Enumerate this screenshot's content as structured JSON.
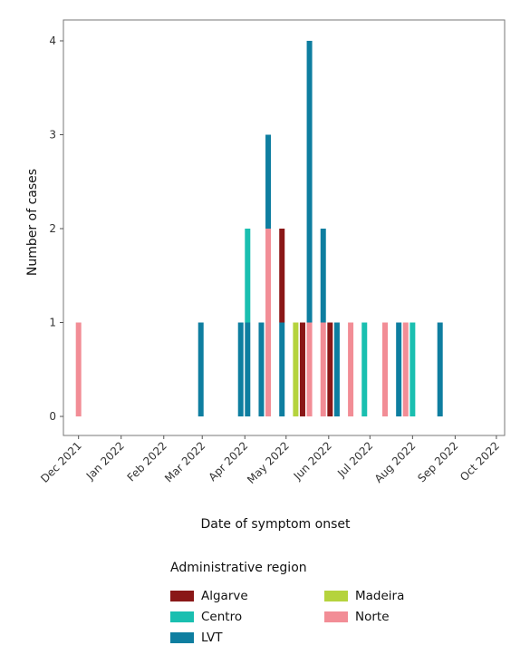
{
  "chart_data": {
    "type": "bar",
    "subtype": "stacked-dot-bar",
    "xlabel": "Date of symptom onset",
    "ylabel": "Number of cases",
    "x_ticks": [
      "Dec 2021",
      "Jan 2022",
      "Feb 2022",
      "Mar 2022",
      "Apr 2022",
      "May 2022",
      "Jun 2022",
      "Jul 2022",
      "Aug 2022",
      "Sep 2022",
      "Oct 2022"
    ],
    "y_ticks": [
      "0",
      "1",
      "2",
      "3",
      "4"
    ],
    "ylim": [
      0,
      4.2
    ],
    "xlim": [
      "2021-11-20",
      "2022-10-07"
    ],
    "legend_title": "Administrative region",
    "legend_position": "bottom",
    "series": [
      {
        "name": "Algarve",
        "color": "#8a1717"
      },
      {
        "name": "Centro",
        "color": "#1abfb0"
      },
      {
        "name": "LVT",
        "color": "#0e7ea0"
      },
      {
        "name": "Madeira",
        "color": "#b5d33d"
      },
      {
        "name": "Norte",
        "color": "#f28d96"
      }
    ],
    "points": [
      {
        "date": "2021-12-01",
        "segments": [
          {
            "series": "Norte",
            "value": 1
          }
        ]
      },
      {
        "date": "2022-02-28",
        "segments": [
          {
            "series": "LVT",
            "value": 1
          }
        ]
      },
      {
        "date": "2022-03-29",
        "segments": [
          {
            "series": "LVT",
            "value": 1
          }
        ]
      },
      {
        "date": "2022-04-03",
        "segments": [
          {
            "series": "LVT",
            "value": 1
          },
          {
            "series": "Centro",
            "value": 1
          }
        ]
      },
      {
        "date": "2022-04-13",
        "segments": [
          {
            "series": "LVT",
            "value": 1
          }
        ]
      },
      {
        "date": "2022-04-18",
        "segments": [
          {
            "series": "Norte",
            "value": 2
          },
          {
            "series": "LVT",
            "value": 1
          }
        ]
      },
      {
        "date": "2022-04-28",
        "segments": [
          {
            "series": "LVT",
            "value": 1
          },
          {
            "series": "Algarve",
            "value": 1
          }
        ]
      },
      {
        "date": "2022-05-08",
        "segments": [
          {
            "series": "Madeira",
            "value": 1
          }
        ]
      },
      {
        "date": "2022-05-13",
        "segments": [
          {
            "series": "Algarve",
            "value": 1
          }
        ]
      },
      {
        "date": "2022-05-18",
        "segments": [
          {
            "series": "Norte",
            "value": 1
          },
          {
            "series": "LVT",
            "value": 3
          }
        ]
      },
      {
        "date": "2022-05-28",
        "segments": [
          {
            "series": "Norte",
            "value": 1
          },
          {
            "series": "LVT",
            "value": 1
          }
        ]
      },
      {
        "date": "2022-06-02",
        "segments": [
          {
            "series": "Algarve",
            "value": 1
          }
        ]
      },
      {
        "date": "2022-06-07",
        "segments": [
          {
            "series": "LVT",
            "value": 1
          }
        ]
      },
      {
        "date": "2022-06-17",
        "segments": [
          {
            "series": "Norte",
            "value": 1
          }
        ]
      },
      {
        "date": "2022-06-27",
        "segments": [
          {
            "series": "Centro",
            "value": 1
          }
        ]
      },
      {
        "date": "2022-07-12",
        "segments": [
          {
            "series": "Norte",
            "value": 1
          }
        ]
      },
      {
        "date": "2022-07-22",
        "segments": [
          {
            "series": "LVT",
            "value": 1
          }
        ]
      },
      {
        "date": "2022-07-27",
        "segments": [
          {
            "series": "Norte",
            "value": 1
          }
        ]
      },
      {
        "date": "2022-08-01",
        "segments": [
          {
            "series": "Centro",
            "value": 1
          }
        ]
      },
      {
        "date": "2022-08-21",
        "segments": [
          {
            "series": "LVT",
            "value": 1
          }
        ]
      }
    ]
  }
}
